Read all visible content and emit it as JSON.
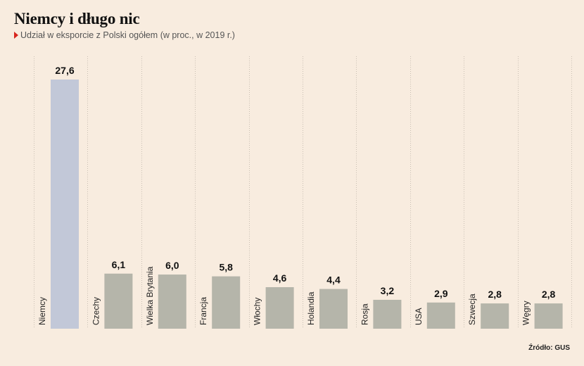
{
  "header": {
    "title": "Niemcy i długo nic",
    "subtitle": "Udział w eksporcie z Polski ogółem (w proc., w 2019 r.)"
  },
  "footer": {
    "source": "Źródło: GUS"
  },
  "colors": {
    "background": "#f8ecdf",
    "highlight_bar": "#c2c8d8",
    "bar": "#b5b5aa",
    "gridline": "#c9bfb3",
    "marker": "#d7261e"
  },
  "chart_data": {
    "type": "bar",
    "title": "Niemcy i długo nic",
    "subtitle": "Udział w eksporcie z Polski ogółem (w proc., w 2019 r.)",
    "categories": [
      "Niemcy",
      "Czechy",
      "Wielka Brytania",
      "Francja",
      "Włochy",
      "Holandia",
      "Rosja",
      "USA",
      "Szwecja",
      "Węgry"
    ],
    "values": [
      27.6,
      6.1,
      6.0,
      5.8,
      4.6,
      4.4,
      3.2,
      2.9,
      2.8,
      2.8
    ],
    "value_labels": [
      "27,6",
      "6,1",
      "6,0",
      "5,8",
      "4,6",
      "4,4",
      "3,2",
      "2,9",
      "2,8",
      "2,8"
    ],
    "highlight_index": 0,
    "xlabel": "",
    "ylabel": "",
    "ylim": [
      0,
      27.6
    ],
    "grid": "vertical separators",
    "legend": "none"
  }
}
